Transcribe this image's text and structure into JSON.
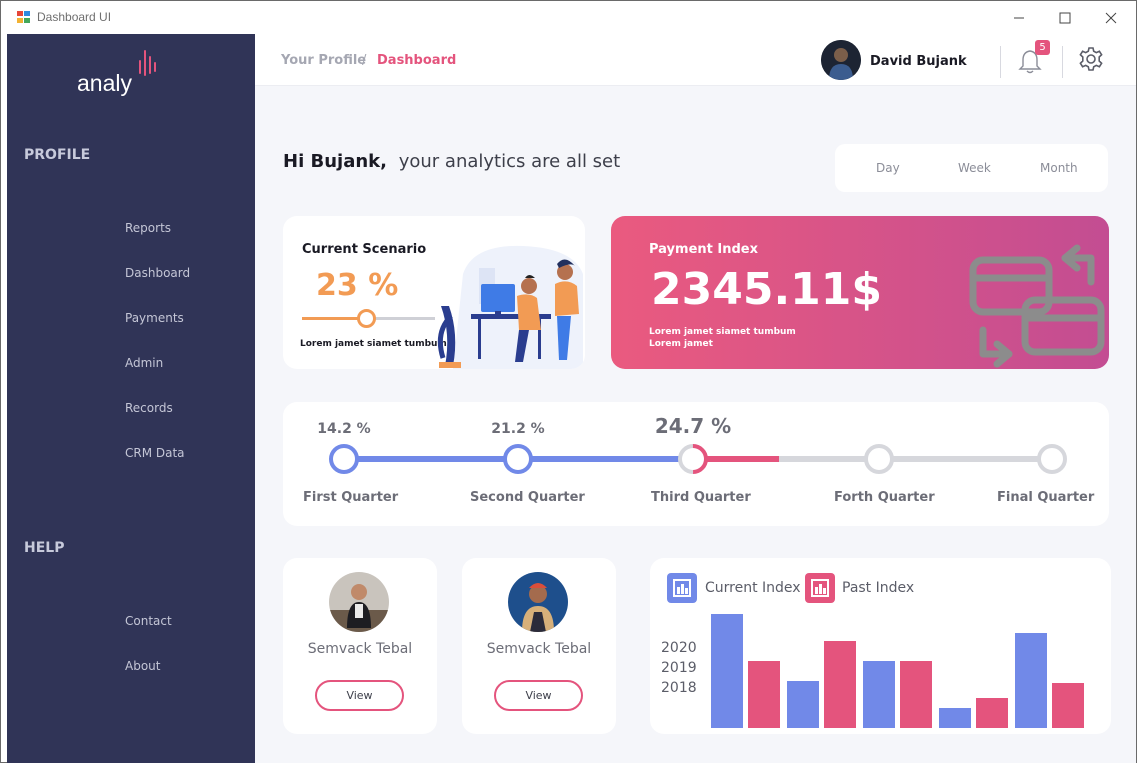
{
  "window": {
    "title": "Dashboard UI"
  },
  "sidebar": {
    "logo_text": "analy",
    "profile_heading": "PROFILE",
    "profile_items": [
      "Reports",
      "Dashboard",
      "Payments",
      "Admin",
      "Records",
      "CRM Data"
    ],
    "help_heading": "HELP",
    "help_items": [
      "Contact",
      "About"
    ]
  },
  "header": {
    "breadcrumb": [
      "Your Profile",
      "/",
      "Dashboard"
    ],
    "user_name": "David Bujank",
    "notification_count": "5"
  },
  "greeting": {
    "name": "Hi Bujank,",
    "message": "your analytics are all set"
  },
  "period_tabs": [
    "Day",
    "Week",
    "Month"
  ],
  "scenario_card": {
    "title": "Current Scenario",
    "value": "23 %",
    "slider_fraction": 0.48,
    "description": "Lorem jamet siamet tumbum"
  },
  "payment_card": {
    "title": "Payment Index",
    "value": "2345.11$",
    "description_line1": "Lorem jamet siamet tumbum",
    "description_line2": "Lorem jamet"
  },
  "quarters": [
    {
      "label": "First Quarter",
      "percent": "14.2 %",
      "state": "done"
    },
    {
      "label": "Second Quarter",
      "percent": "21.2 %",
      "state": "done"
    },
    {
      "label": "Third Quarter",
      "percent": "24.7 %",
      "state": "current"
    },
    {
      "label": "Forth Quarter",
      "percent": "",
      "state": "pending"
    },
    {
      "label": "Final Quarter",
      "percent": "",
      "state": "pending"
    }
  ],
  "people": [
    {
      "name": "Semvack Tebal",
      "button": "View"
    },
    {
      "name": "Semvack Tebal",
      "button": "View"
    }
  ],
  "colors": {
    "accent": "#e4547d",
    "blue": "#7189e8",
    "orange": "#f29b54",
    "sidebar": "#303457"
  },
  "chart_data": {
    "type": "bar",
    "legend": [
      "Current Index",
      "Past Index"
    ],
    "year_labels": [
      "2020",
      "2019",
      "2018"
    ],
    "series": [
      {
        "name": "Current Index",
        "color": "#7189e8",
        "values": [
          114,
          47,
          67,
          20,
          95
        ]
      },
      {
        "name": "Past Index",
        "color": "#e4547d",
        "values": [
          67,
          87,
          67,
          30,
          45
        ]
      }
    ],
    "ylim": [
      0,
      120
    ]
  }
}
